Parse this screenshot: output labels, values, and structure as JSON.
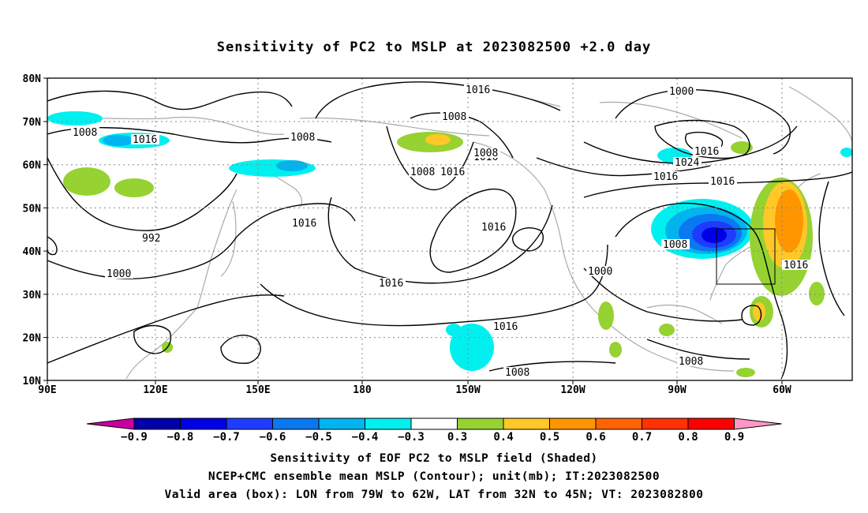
{
  "title": "Sensitivity of PC2 to MSLP at 2023082500 +2.0 day",
  "map": {
    "lat_ticks": [
      "80N",
      "70N",
      "60N",
      "50N",
      "40N",
      "30N",
      "20N",
      "10N"
    ],
    "lon_ticks": [
      "90E",
      "120E",
      "150E",
      "180",
      "150W",
      "120W",
      "90W",
      "60W"
    ],
    "lon_range": [
      "90E",
      "30W"
    ],
    "lat_range": [
      "10N",
      "80N"
    ],
    "contour_labels": [
      "1016",
      "1008",
      "1016",
      "1008",
      "1016",
      "1008",
      "1016",
      "1016",
      "1008",
      "1000",
      "1016",
      "1024",
      "1016",
      "1016",
      "1008",
      "1016",
      "1008",
      "1000",
      "992",
      "1000",
      "1008",
      "1016",
      "1016",
      "1016",
      "1008"
    ],
    "valid_box": {
      "lon_min": "79W",
      "lon_max": "62W",
      "lat_min": "32N",
      "lat_max": "45N"
    }
  },
  "colorbar": {
    "labels": [
      "-0.9",
      "-0.8",
      "-0.7",
      "-0.6",
      "-0.5",
      "-0.4",
      "-0.3",
      "0.3",
      "0.4",
      "0.5",
      "0.6",
      "0.7",
      "0.8",
      "0.9"
    ],
    "colors": [
      "#0000a8",
      "#0000e6",
      "#1e3cff",
      "#0a78f0",
      "#00b4f0",
      "#00f0f0",
      "#ffffff",
      "#96d232",
      "#ffc828",
      "#ff9600",
      "#ff6400",
      "#ff3200",
      "#ff0000"
    ],
    "under_color": "#c800a0",
    "over_color": "#ff96c8"
  },
  "footer": [
    "Sensitivity of EOF PC2 to MSLP field (Shaded)",
    "NCEP+CMC ensemble mean MSLP (Contour); unit(mb); IT:2023082500",
    "Valid area (box): LON from 79W to 62W, LAT from 32N to 45N; VT: 2023082800"
  ]
}
